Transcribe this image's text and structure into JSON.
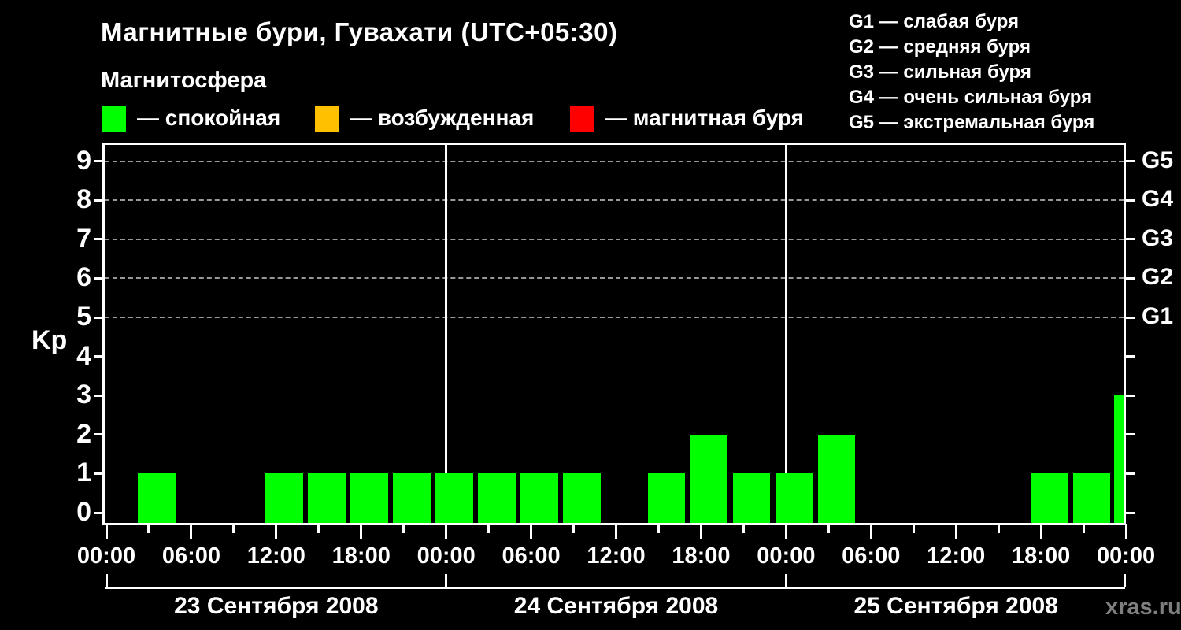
{
  "header": {
    "title": "Магнитные бури, Гувахати (UTC+05:30)",
    "subtitle": "Магнитосфера",
    "magnetosphere_legend": [
      {
        "swatch_color": "#00ff00",
        "label": "— спокойная"
      },
      {
        "swatch_color": "#ffc000",
        "label": "— возбужденная"
      },
      {
        "swatch_color": "#ff0000",
        "label": "— магнитная буря"
      }
    ],
    "storm_scale_legend": [
      "G1 — слабая буря",
      "G2 — средняя буря",
      "G3 — сильная буря",
      "G4 — очень сильная буря",
      "G5 — экстремальная буря"
    ]
  },
  "watermark": "xras.ru",
  "chart_data": {
    "type": "bar",
    "title": "Магнитные бури, Гувахати (UTC+05:30)",
    "ylabel": "Kp",
    "ylim": [
      0,
      9.9
    ],
    "y_ticks": [
      0,
      1,
      2,
      3,
      4,
      5,
      6,
      7,
      8,
      9
    ],
    "grid": "horizontal dashed lines at Kp 5..9",
    "right_axis_labels": [
      {
        "kp": 5,
        "label": "G1"
      },
      {
        "kp": 6,
        "label": "G2"
      },
      {
        "kp": 7,
        "label": "G3"
      },
      {
        "kp": 8,
        "label": "G4"
      },
      {
        "kp": 9,
        "label": "G5"
      }
    ],
    "bar_color": "#00ff00",
    "interval_hours": 3,
    "x_tick_labels": [
      "00:00",
      "06:00",
      "12:00",
      "18:00",
      "00:00",
      "06:00",
      "12:00",
      "18:00",
      "00:00",
      "06:00",
      "12:00",
      "18:00",
      "00:00"
    ],
    "days": [
      {
        "label": "23 Сентября 2008",
        "kp_3h": [
          0,
          1,
          0,
          0,
          1,
          1,
          1,
          1
        ]
      },
      {
        "label": "24 Сентября 2008",
        "kp_3h": [
          1,
          1,
          1,
          1,
          0,
          1,
          2,
          1
        ]
      },
      {
        "label": "25 Сентября 2008",
        "kp_3h": [
          1,
          2,
          0,
          0,
          0,
          0,
          1,
          1
        ]
      }
    ],
    "next_interval_partial_kp": 3,
    "legend_position": "top"
  }
}
